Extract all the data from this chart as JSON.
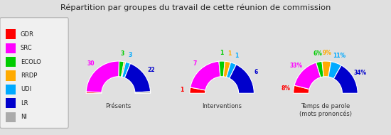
{
  "title": "Répartition par groupes du travail de cette réunion de commission",
  "groups": [
    "GDR",
    "SRC",
    "ECOLO",
    "RRDP",
    "UDI",
    "LR",
    "NI"
  ],
  "colors": [
    "#ff0000",
    "#ff00ff",
    "#00cc00",
    "#ffaa00",
    "#00aaff",
    "#0000cc",
    "#aaaaaa"
  ],
  "presents": [
    1,
    30,
    3,
    1,
    3,
    22,
    1
  ],
  "interventions": [
    1,
    7,
    1,
    1,
    1,
    6,
    0
  ],
  "temps_parole": [
    8,
    33,
    6,
    9,
    11,
    34,
    0
  ],
  "chart1_label": "Présents",
  "chart2_label": "Interventions",
  "chart3_label": "Temps de parole\n(mots prononcés)",
  "background_color": "#e0e0e0",
  "legend_bg": "#f0f0f0"
}
